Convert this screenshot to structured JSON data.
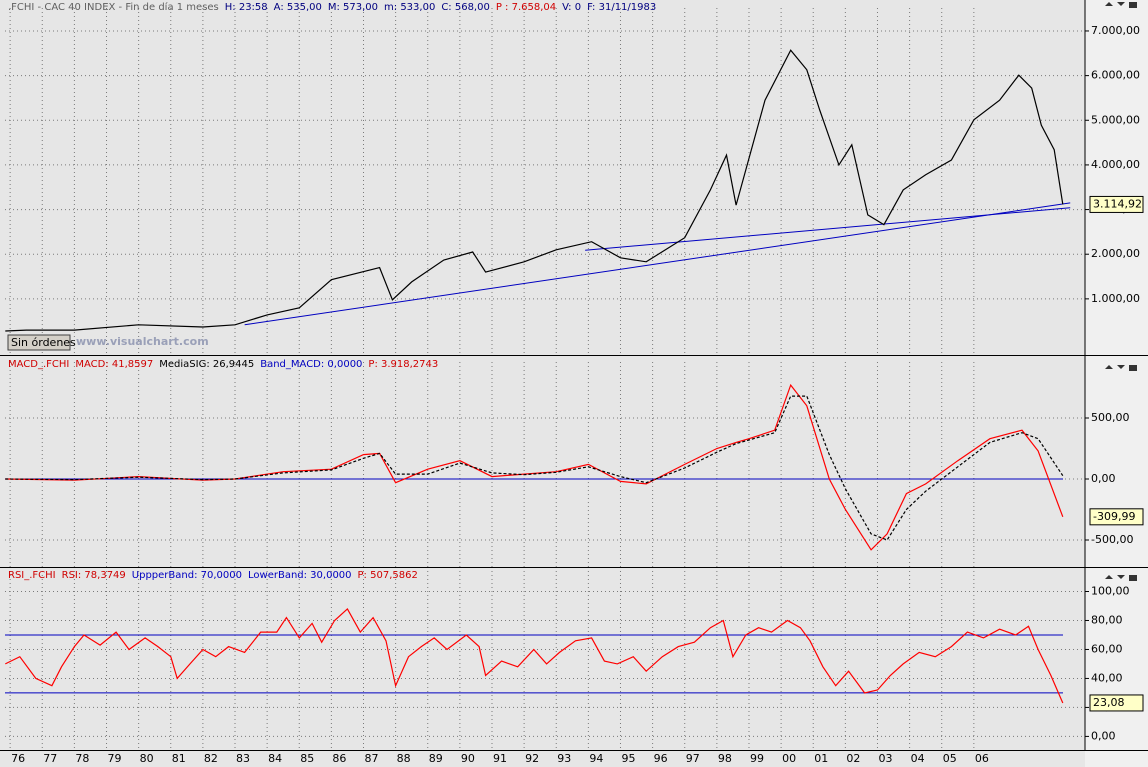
{
  "chart_data": [
    {
      "type": "line",
      "title_parts": [
        {
          "text": ".FCHI - CAC 40 INDEX - Fin de día 1 meses",
          "color": "#606060"
        },
        {
          "text": "H: 23:58",
          "color": "#000080"
        },
        {
          "text": "A: 535,00",
          "color": "#000080"
        },
        {
          "text": "M: 573,00",
          "color": "#000080"
        },
        {
          "text": "m: 533,00",
          "color": "#000080"
        },
        {
          "text": "C: 568,00",
          "color": "#000080"
        },
        {
          "text": "P : 7.658,04",
          "color": "#d00000"
        },
        {
          "text": "V: 0",
          "color": "#000080"
        },
        {
          "text": "F: 31/11/1983",
          "color": "#000080"
        }
      ],
      "watermark": "www.visualchart.com",
      "button": "Sin órdenes",
      "ylim": [
        -190,
        7380
      ],
      "yticks": [
        {
          "value": 1000,
          "label": "1.000,00"
        },
        {
          "value": 2000,
          "label": "2.000,00"
        },
        {
          "value": 3000,
          "label": "3.000,00"
        },
        {
          "value": 4000,
          "label": "4.000,00"
        },
        {
          "value": 5000,
          "label": "5.000,00"
        },
        {
          "value": 6000,
          "label": "6.000,00"
        },
        {
          "value": 7000,
          "label": "7.000,00"
        }
      ],
      "series": [
        {
          "name": "CAC 40",
          "color": "#000000",
          "x": [
            1975.85,
            1976.5,
            1978,
            1980,
            1982,
            1983,
            1984,
            1985,
            1986,
            1987.5,
            1987.9,
            1988.5,
            1989.5,
            1990.4,
            1990.8,
            1992,
            1993,
            1994.1,
            1995,
            1995.8,
            1997,
            1997.8,
            1998.3,
            1998.6,
            1999.5,
            2000.3,
            2000.8,
            2001.2,
            2001.8,
            2002.2,
            2002.7,
            2003.2,
            2003.8,
            2004.5,
            2005.3,
            2006,
            2006.8,
            2007.4,
            2007.8,
            2008.1,
            2008.5,
            2008.77
          ],
          "values": [
            280,
            300,
            300,
            420,
            370,
            420,
            640,
            800,
            1430,
            1700,
            980,
            1380,
            1870,
            2050,
            1600,
            1830,
            2100,
            2280,
            1920,
            1830,
            2370,
            3440,
            4220,
            3100,
            5450,
            6570,
            6130,
            5230,
            4000,
            4450,
            2880,
            2660,
            3440,
            3780,
            4110,
            5010,
            5450,
            6010,
            5720,
            4890,
            4340,
            3114.92
          ]
        }
      ],
      "trendlines": [
        {
          "color": "#0000c0",
          "x": [
            1983.3,
            2009.0
          ],
          "values": [
            420,
            3150
          ]
        },
        {
          "color": "#0000c0",
          "x": [
            1993.9,
            2009.0
          ],
          "values": [
            2090,
            3040
          ]
        }
      ],
      "last_label": {
        "value": 3114.92,
        "label": "3.114,92"
      }
    },
    {
      "type": "line",
      "title_parts": [
        {
          "text": "MACD_.FCHI",
          "color": "#d00000"
        },
        {
          "text": "MACD: 41,8597",
          "color": "#d00000"
        },
        {
          "text": "MediaSIG: 26,9445",
          "color": "#000000"
        },
        {
          "text": "Band_MACD: 0,0000",
          "color": "#0000c0"
        },
        {
          "text": "P: 3.918,2743",
          "color": "#d00000"
        }
      ],
      "ylim": [
        -705,
        910
      ],
      "yticks": [
        {
          "value": -500,
          "label": "-500,00"
        },
        {
          "value": 0,
          "label": "0,00"
        },
        {
          "value": 500,
          "label": "500,00"
        }
      ],
      "hlines": [
        {
          "value": 0,
          "color": "#0000c0"
        }
      ],
      "series": [
        {
          "name": "MACD",
          "color": "#ff0000",
          "dash": false,
          "x": [
            1975.85,
            1978,
            1980,
            1982,
            1983,
            1984.5,
            1986,
            1987,
            1987.5,
            1988,
            1989,
            1990,
            1991,
            1992,
            1993,
            1994,
            1995,
            1995.8,
            1997,
            1998,
            1998.6,
            1999,
            1999.8,
            2000.3,
            2000.8,
            2001.5,
            2002,
            2002.8,
            2003.3,
            2003.9,
            2004.5,
            2005.5,
            2006.5,
            2007.5,
            2008,
            2008.77
          ],
          "values": [
            0,
            -10,
            20,
            -10,
            0,
            60,
            80,
            200,
            210,
            -30,
            80,
            150,
            20,
            40,
            60,
            120,
            -20,
            -40,
            120,
            250,
            300,
            330,
            400,
            770,
            600,
            0,
            -250,
            -580,
            -450,
            -120,
            -40,
            150,
            330,
            400,
            230,
            -309.99
          ]
        },
        {
          "name": "MediaSIG",
          "color": "#000000",
          "dash": true,
          "x": [
            1975.85,
            1978,
            1980,
            1982,
            1983,
            1984.5,
            1986,
            1987,
            1987.5,
            1988,
            1989,
            1990,
            1991,
            1992,
            1993,
            1994,
            1995,
            1995.8,
            1997,
            1998,
            1998.6,
            1999,
            1999.8,
            2000.3,
            2000.8,
            2001.5,
            2002,
            2002.8,
            2003.3,
            2003.9,
            2004.5,
            2005.5,
            2006.5,
            2007.5,
            2008,
            2008.77
          ],
          "values": [
            0,
            -5,
            15,
            -5,
            0,
            50,
            75,
            170,
            210,
            40,
            40,
            130,
            50,
            35,
            55,
            100,
            20,
            -30,
            90,
            220,
            290,
            320,
            380,
            680,
            680,
            200,
            -80,
            -450,
            -500,
            -250,
            -100,
            100,
            300,
            380,
            330,
            26.94
          ]
        }
      ],
      "last_label": {
        "value": -309.99,
        "label": "-309,99"
      }
    },
    {
      "type": "line",
      "title_parts": [
        {
          "text": "RSI_.FCHI",
          "color": "#d00000"
        },
        {
          "text": "RSI: 78,3749",
          "color": "#d00000"
        },
        {
          "text": "UppperBand: 70,0000",
          "color": "#0000c0"
        },
        {
          "text": "LowerBand: 30,0000",
          "color": "#0000c0"
        },
        {
          "text": "P: 507,5862",
          "color": "#d00000"
        }
      ],
      "ylim": [
        -8,
        110
      ],
      "yticks": [
        {
          "value": 0,
          "label": "0,00"
        },
        {
          "value": 20,
          "label": "20,00"
        },
        {
          "value": 40,
          "label": "40,00"
        },
        {
          "value": 60,
          "label": "60,00"
        },
        {
          "value": 80,
          "label": "80,00"
        },
        {
          "value": 100,
          "label": "100,00"
        }
      ],
      "hlines": [
        {
          "value": 70,
          "color": "#0000c0"
        },
        {
          "value": 30,
          "color": "#0000c0"
        }
      ],
      "series": [
        {
          "name": "RSI",
          "color": "#ff0000",
          "dash": false,
          "x": [
            1975.85,
            1976.3,
            1976.8,
            1977.3,
            1977.6,
            1978,
            1978.3,
            1978.8,
            1979.3,
            1979.7,
            1980.2,
            1980.6,
            1981,
            1981.2,
            1981.6,
            1982,
            1982.4,
            1982.8,
            1983.3,
            1983.8,
            1984.3,
            1984.6,
            1985,
            1985.4,
            1985.7,
            1986.1,
            1986.5,
            1986.9,
            1987.3,
            1987.7,
            1988,
            1988.4,
            1988.8,
            1989.2,
            1989.6,
            1990.2,
            1990.6,
            1990.8,
            1991.3,
            1991.8,
            1992.3,
            1992.7,
            1993.1,
            1993.6,
            1994.1,
            1994.5,
            1994.9,
            1995.4,
            1995.8,
            1996.3,
            1996.8,
            1997.3,
            1997.8,
            1998.2,
            1998.5,
            1998.9,
            1999.3,
            1999.7,
            2000.2,
            2000.6,
            2000.9,
            2001.3,
            2001.7,
            2002.1,
            2002.6,
            2003,
            2003.4,
            2003.8,
            2004.3,
            2004.8,
            2005.3,
            2005.8,
            2006.3,
            2006.8,
            2007.3,
            2007.7,
            2008,
            2008.4,
            2008.77
          ],
          "values": [
            50,
            55,
            40,
            35,
            48,
            62,
            70,
            63,
            72,
            60,
            68,
            62,
            55,
            40,
            50,
            60,
            55,
            62,
            58,
            72,
            72,
            82,
            68,
            78,
            65,
            80,
            88,
            72,
            82,
            66,
            35,
            55,
            62,
            68,
            60,
            70,
            62,
            42,
            52,
            48,
            60,
            50,
            58,
            66,
            68,
            52,
            50,
            55,
            45,
            55,
            62,
            65,
            75,
            80,
            55,
            70,
            75,
            72,
            80,
            75,
            66,
            48,
            35,
            45,
            30,
            32,
            42,
            50,
            58,
            55,
            62,
            72,
            68,
            74,
            70,
            76,
            60,
            42,
            23.08
          ]
        }
      ],
      "last_label": {
        "value": 23.08,
        "label": "23,08"
      },
      "xlim": [
        1975.84,
        2009.46
      ],
      "xticks": [
        {
          "value": 1976,
          "label": "76"
        },
        {
          "value": 1977,
          "label": "77"
        },
        {
          "value": 1978,
          "label": "78"
        },
        {
          "value": 1979,
          "label": "79"
        },
        {
          "value": 1980,
          "label": "80"
        },
        {
          "value": 1981,
          "label": "81"
        },
        {
          "value": 1982,
          "label": "82"
        },
        {
          "value": 1983,
          "label": "83"
        },
        {
          "value": 1984,
          "label": "84"
        },
        {
          "value": 1985,
          "label": "85"
        },
        {
          "value": 1986,
          "label": "86"
        },
        {
          "value": 1987,
          "label": "87"
        },
        {
          "value": 1988,
          "label": "88"
        },
        {
          "value": 1989,
          "label": "89"
        },
        {
          "value": 1990,
          "label": "90"
        },
        {
          "value": 1991,
          "label": "91"
        },
        {
          "value": 1992,
          "label": "92"
        },
        {
          "value": 1993,
          "label": "93"
        },
        {
          "value": 1994,
          "label": "94"
        },
        {
          "value": 1995,
          "label": "95"
        },
        {
          "value": 1996,
          "label": "96"
        },
        {
          "value": 1997,
          "label": "97"
        },
        {
          "value": 1998,
          "label": "98"
        },
        {
          "value": 1999,
          "label": "99"
        },
        {
          "value": 2000,
          "label": "00"
        },
        {
          "value": 2001,
          "label": "01"
        },
        {
          "value": 2002,
          "label": "02"
        },
        {
          "value": 2003,
          "label": "03"
        },
        {
          "value": 2004,
          "label": "04"
        },
        {
          "value": 2005,
          "label": "05"
        },
        {
          "value": 2006,
          "label": "06"
        }
      ]
    }
  ]
}
